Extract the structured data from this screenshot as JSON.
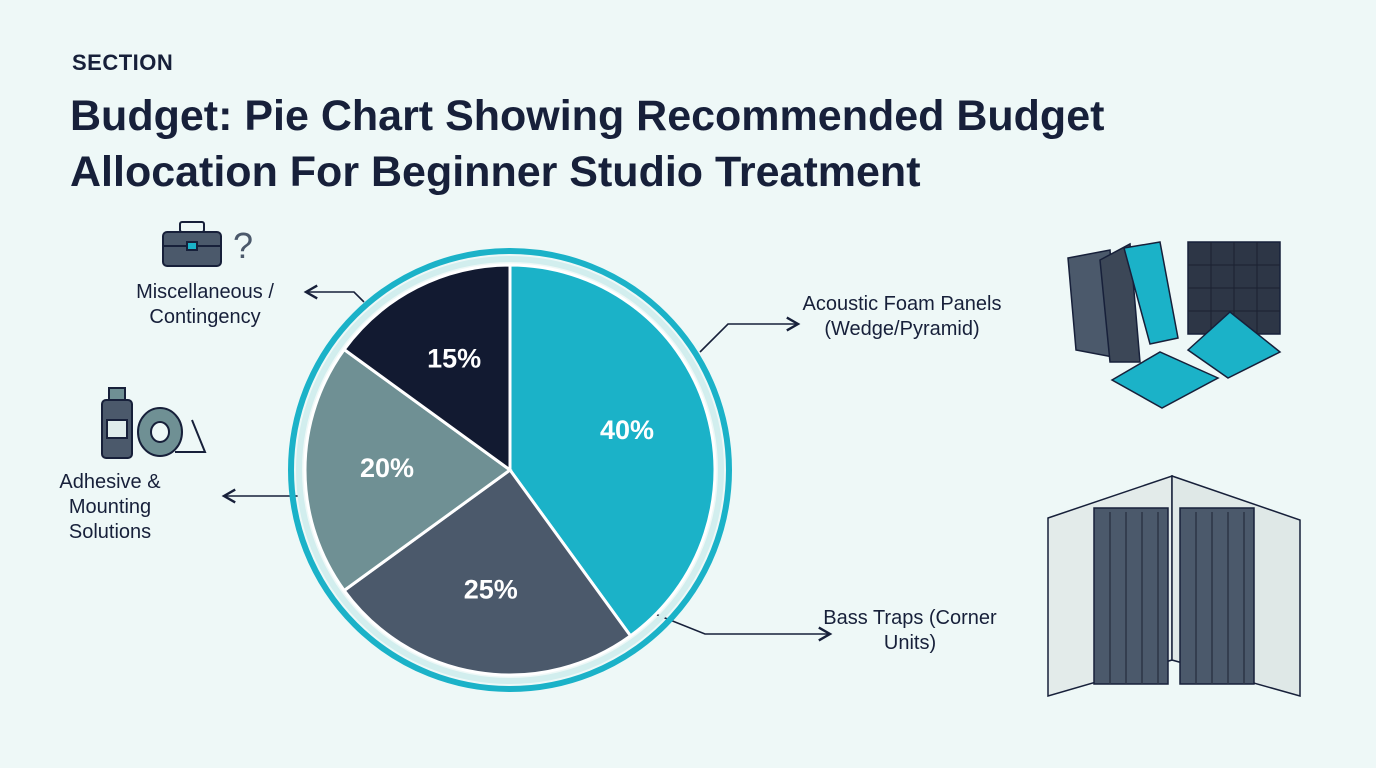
{
  "chart_data": {
    "type": "pie",
    "kicker": "SECTION",
    "title": "Budget: Pie Chart Showing Recommended Budget Allocation For Beginner Studio Treatment",
    "categories": [
      "Acoustic Foam Panels (Wedge/Pyramid)",
      "Bass Traps (Corner Units)",
      "Adhesive & Mounting Solutions",
      "Miscellaneous / Contingency"
    ],
    "values": [
      40,
      25,
      20,
      15
    ],
    "value_labels": [
      "40%",
      "25%",
      "20%",
      "15%"
    ],
    "colors": [
      "#1bb2c8",
      "#4b596b",
      "#6f9094",
      "#121a31"
    ]
  }
}
